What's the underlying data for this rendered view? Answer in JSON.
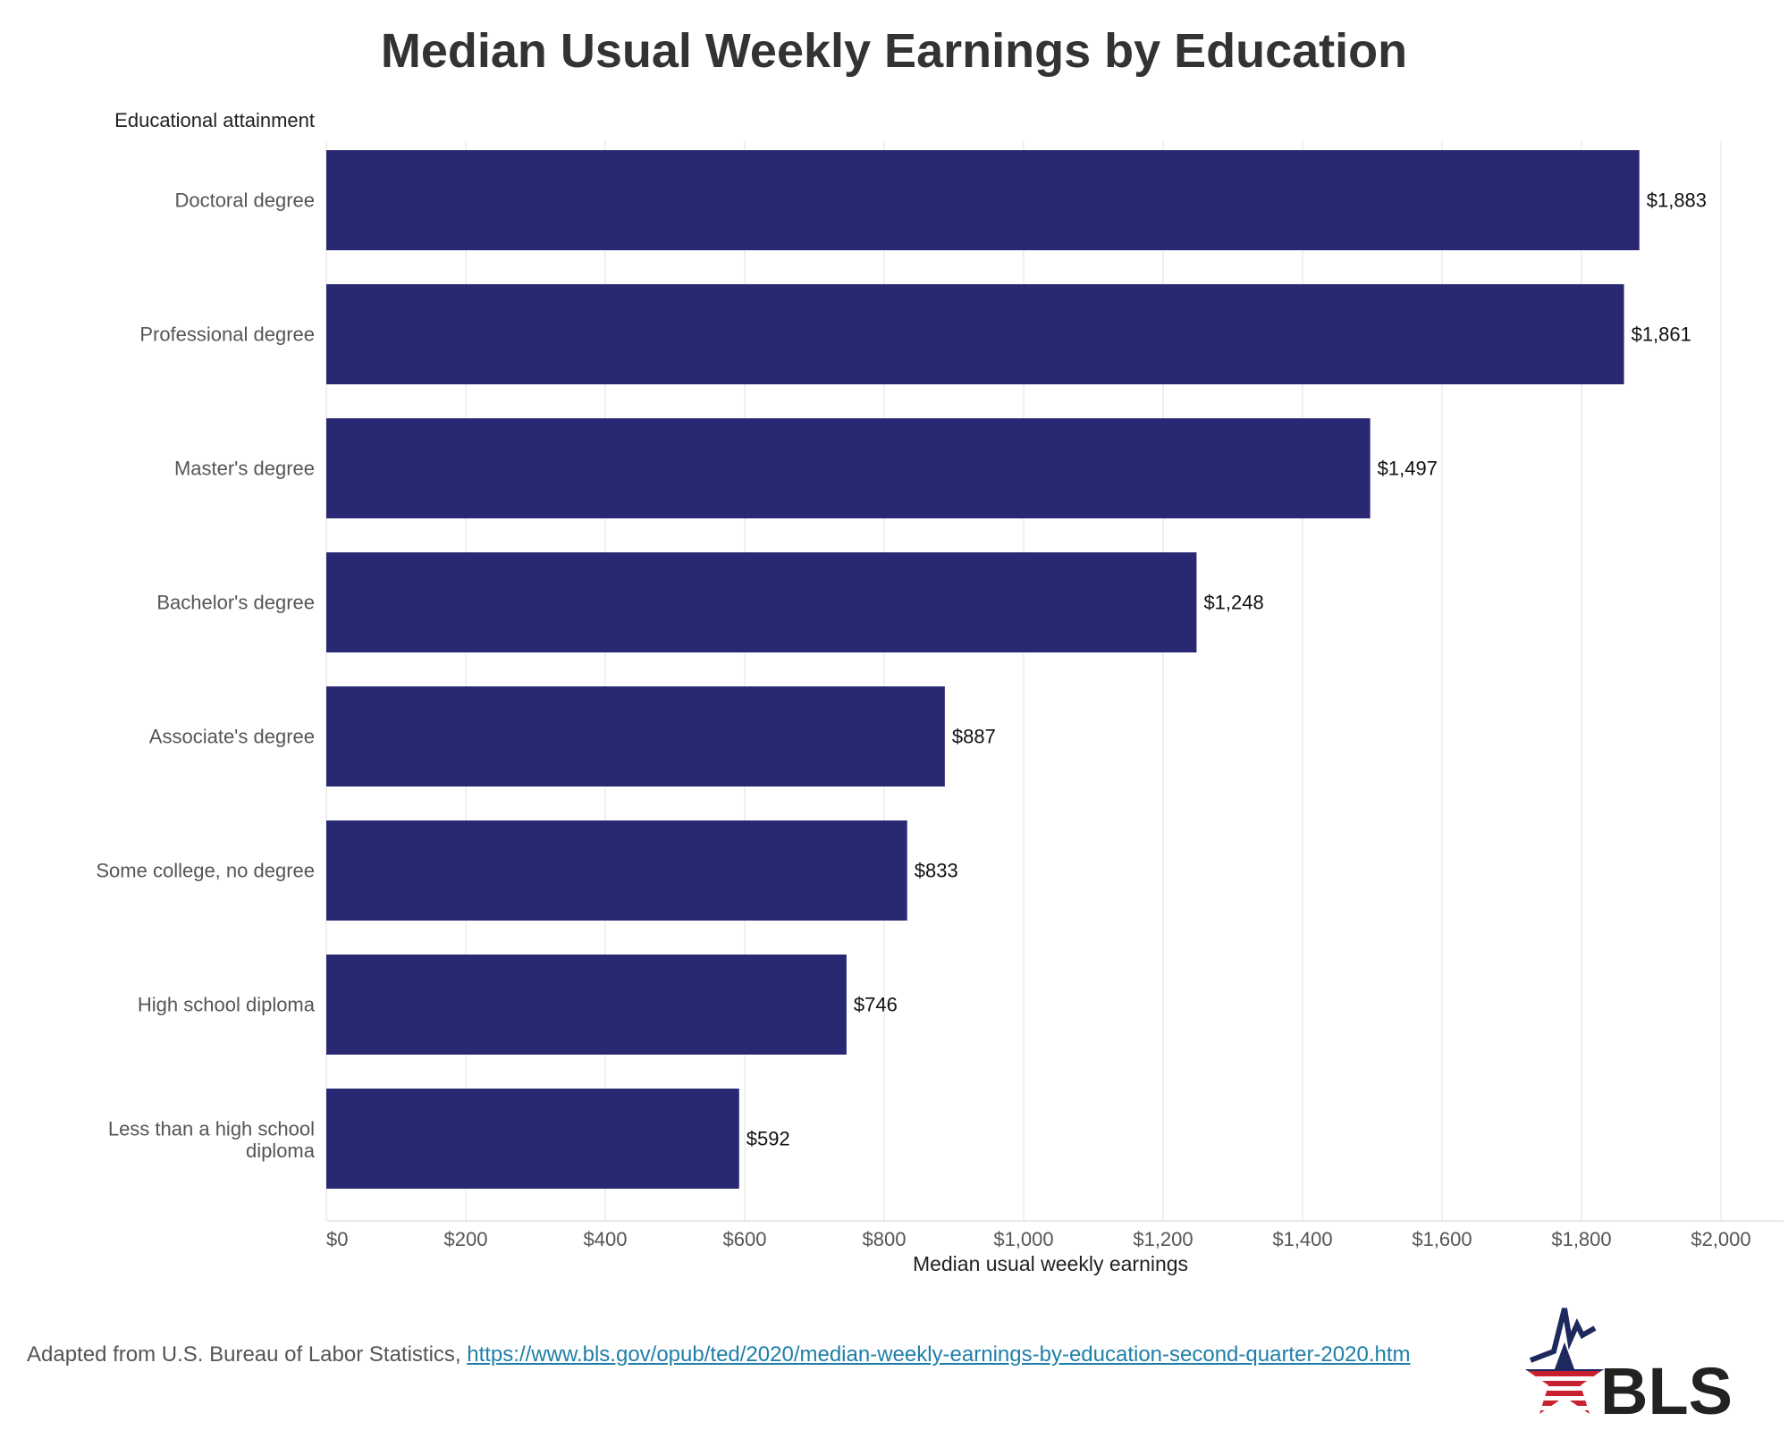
{
  "chart_data": {
    "type": "bar",
    "orientation": "horizontal",
    "title": "Median Usual Weekly Earnings by Education",
    "ylabel": "Educational attainment",
    "xlabel": "Median usual weekly earnings",
    "categories": [
      "Doctoral degree",
      "Professional degree",
      "Master's degree",
      "Bachelor's degree",
      "Associate's degree",
      "Some college, no degree",
      "High school diploma",
      "Less than a high school diploma"
    ],
    "values": [
      1883,
      1861,
      1497,
      1248,
      887,
      833,
      746,
      592
    ],
    "value_labels": [
      "$1,883",
      "$1,861",
      "$1,497",
      "$1,248",
      "$887",
      "$833",
      "$746",
      "$592"
    ],
    "xlim": [
      0,
      2000
    ],
    "xticks": [
      0,
      200,
      400,
      600,
      800,
      1000,
      1200,
      1400,
      1600,
      1800,
      2000
    ],
    "xtick_labels": [
      "$0",
      "$200",
      "$400",
      "$600",
      "$800",
      "$1,000",
      "$1,200",
      "$1,400",
      "$1,600",
      "$1,800",
      "$2,000"
    ],
    "grid": true,
    "colors": {
      "bar": "#282873",
      "grid": "#ebebeb",
      "axis_text": "#555555"
    }
  },
  "footer": {
    "text": "Adapted from U.S. Bureau of Labor Statistics, ",
    "link": "https://www.bls.gov/opub/ted/2020/median-weekly-earnings-by-education-second-quarter-2020.htm"
  },
  "logo": {
    "text": "BLS",
    "colors": {
      "navy": "#1e2a5e",
      "red": "#c8202f",
      "black": "#222222"
    }
  }
}
